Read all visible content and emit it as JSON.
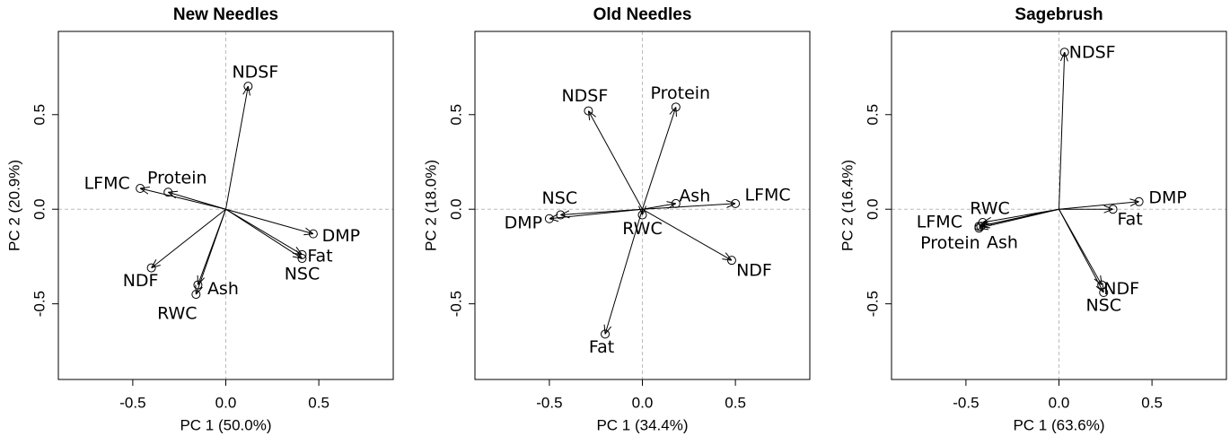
{
  "chart_data": [
    {
      "type": "biplot",
      "title": "New Needles",
      "xlabel": "PC 1 (50.0%)",
      "ylabel": "PC 2 (20.9%)",
      "xlim": [
        -0.9,
        0.9
      ],
      "ylim": [
        -0.9,
        0.94
      ],
      "xticks": [
        -0.5,
        {
          "value": 0,
          "label": "0.0"
        },
        0.5
      ],
      "yticks": [
        -0.5,
        {
          "value": 0,
          "label": "0.0"
        },
        0.5
      ],
      "labels": [
        "NDSF",
        "LFMC",
        "Protein",
        "DMP",
        "Fat",
        "NSC",
        "NDF",
        "Ash",
        "RWC"
      ],
      "x": [
        0.12,
        -0.46,
        -0.31,
        0.47,
        0.41,
        0.41,
        -0.4,
        -0.15,
        -0.16
      ],
      "y": [
        0.65,
        0.11,
        0.09,
        -0.13,
        -0.24,
        -0.26,
        -0.31,
        -0.4,
        -0.45
      ]
    },
    {
      "type": "biplot",
      "title": "Old Needles",
      "xlabel": "PC 1 (34.4%)",
      "ylabel": "PC 2 (18.0%)",
      "xlim": [
        -0.9,
        0.9
      ],
      "ylim": [
        -0.9,
        0.94
      ],
      "xticks": [
        -0.5,
        {
          "value": 0,
          "label": "0.0"
        },
        0.5
      ],
      "yticks": [
        -0.5,
        {
          "value": 0,
          "label": "0.0"
        },
        0.5
      ],
      "labels": [
        "NDSF",
        "Protein",
        "NSC",
        "DMP",
        "Ash",
        "LFMC",
        "RWC",
        "NDF",
        "Fat"
      ],
      "x": [
        -0.29,
        0.18,
        -0.44,
        -0.5,
        0.18,
        0.5,
        0.0,
        0.48,
        -0.2
      ],
      "y": [
        0.52,
        0.54,
        -0.03,
        -0.05,
        0.03,
        0.03,
        -0.03,
        -0.27,
        -0.66
      ]
    },
    {
      "type": "biplot",
      "title": "Sagebrush",
      "xlabel": "PC 1 (63.6%)",
      "ylabel": "PC 2 (16.4%)",
      "xlim": [
        -0.9,
        0.9
      ],
      "ylim": [
        -0.9,
        0.94
      ],
      "xticks": [
        -0.5,
        {
          "value": 0,
          "label": "0.0"
        },
        0.5
      ],
      "yticks": [
        -0.5,
        {
          "value": 0,
          "label": "0.0"
        },
        0.5
      ],
      "labels": [
        "NDSF",
        "DMP",
        "Fat",
        "RWC",
        "LFMC",
        "Protein",
        "Ash",
        "NDF",
        "NSC"
      ],
      "x": [
        0.03,
        0.43,
        0.29,
        -0.41,
        -0.43,
        -0.43,
        -0.42,
        0.23,
        0.24
      ],
      "y": [
        0.83,
        0.04,
        0.0,
        -0.07,
        -0.09,
        -0.1,
        -0.09,
        -0.4,
        -0.44
      ]
    }
  ]
}
